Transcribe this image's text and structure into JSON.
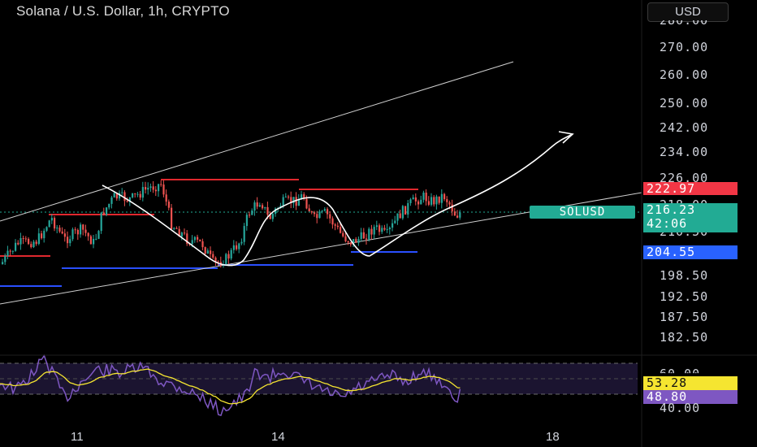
{
  "header": {
    "title": "Solana / U.S. Dollar, 1h, CRYPTO",
    "currency_button": "USD"
  },
  "price_axis": {
    "ticks": [
      "270.00",
      "260.00",
      "250.00",
      "242.00",
      "234.00",
      "226.00",
      "218.00",
      "210.50",
      "198.50",
      "192.50",
      "187.50",
      "182.50"
    ],
    "partial_top_tick": "280.00"
  },
  "badges": {
    "resistance": {
      "value": "222.97",
      "color": "#f23645"
    },
    "last_price": {
      "value": "216.23",
      "countdown": "42:06",
      "color": "#22ab94"
    },
    "support": {
      "value": "204.55",
      "color": "#2962ff"
    },
    "symbol": "SOLUSD"
  },
  "rsi_axis": {
    "ticks": [
      "60.00",
      "40.00"
    ],
    "rsi_badge": {
      "value": "53.28",
      "color": "#f5e530"
    },
    "ma_badge": {
      "value": "48.80",
      "color": "#7e57c2"
    }
  },
  "time_axis": {
    "labels": [
      "11",
      "14",
      "18"
    ]
  },
  "colors": {
    "up": "#26a69a",
    "down": "#ef5350",
    "rsi": "#7e57c2",
    "rsi_ma": "#f5e530",
    "drawing": "#ffffff"
  }
}
